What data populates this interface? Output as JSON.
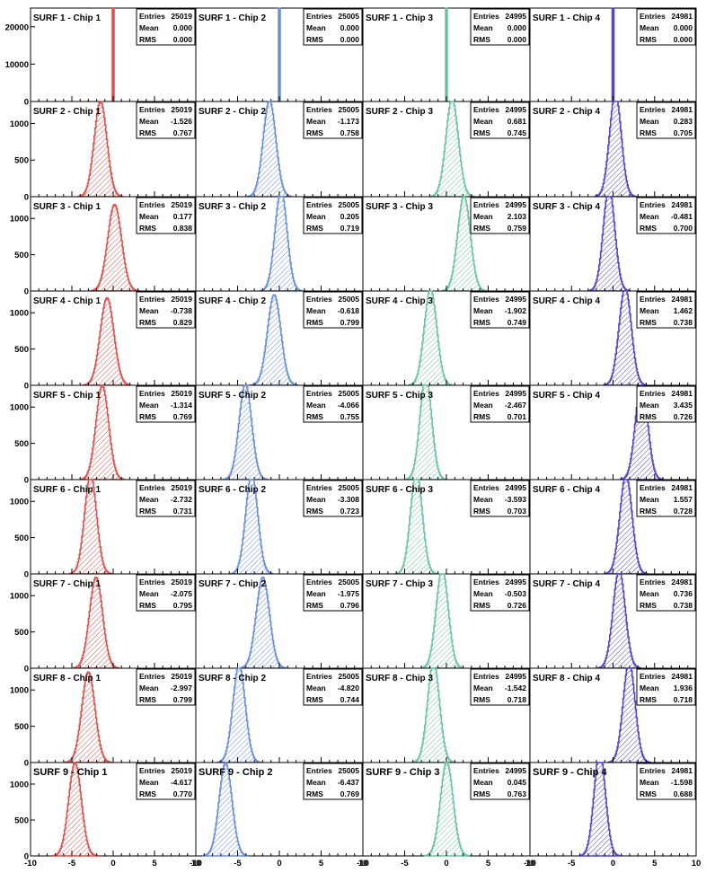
{
  "chart_data": {
    "type": "histogram-grid",
    "rows": 9,
    "cols": 4,
    "series_colors": [
      "#d9534f",
      "#6b8fd6",
      "#6dc39b",
      "#5145c8"
    ],
    "x_axis": {
      "xlim": [
        -10,
        10
      ],
      "ticks": [
        -10,
        -5,
        0,
        5,
        10
      ],
      "tick_labels": [
        "-10",
        "-5",
        "0",
        "5",
        "10"
      ]
    },
    "y_axis_row1": {
      "ticks": [
        0,
        10000,
        20000
      ],
      "tick_labels": [
        "0",
        "10000",
        "20000"
      ],
      "ylim": [
        0,
        25000
      ]
    },
    "y_axis_other": {
      "ticks": [
        0,
        500,
        1000
      ],
      "tick_labels": [
        "0",
        "500",
        "1000"
      ],
      "ylim": [
        0,
        1300
      ]
    },
    "stat_labels": {
      "entries": "Entries",
      "mean": "Mean",
      "rms": "RMS"
    },
    "panels": [
      {
        "title": "SURF 1 - Chip 1",
        "entries": "25019",
        "mean": "0.000",
        "rms": "0.000"
      },
      {
        "title": "SURF 1 - Chip 2",
        "entries": "25005",
        "mean": "0.000",
        "rms": "0.000"
      },
      {
        "title": "SURF 1 - Chip 3",
        "entries": "24995",
        "mean": "0.000",
        "rms": "0.000"
      },
      {
        "title": "SURF 1 - Chip 4",
        "entries": "24981",
        "mean": "0.000",
        "rms": "0.000"
      },
      {
        "title": "SURF 2 - Chip 1",
        "entries": "25019",
        "mean": "-1.526",
        "rms": "0.767"
      },
      {
        "title": "SURF 2 - Chip 2",
        "entries": "25005",
        "mean": "-1.173",
        "rms": "0.758"
      },
      {
        "title": "SURF 2 - Chip 3",
        "entries": "24995",
        "mean": "0.681",
        "rms": "0.745"
      },
      {
        "title": "SURF 2 - Chip 4",
        "entries": "24981",
        "mean": "0.283",
        "rms": "0.705"
      },
      {
        "title": "SURF 3 - Chip 1",
        "entries": "25019",
        "mean": "0.177",
        "rms": "0.838"
      },
      {
        "title": "SURF 3 - Chip 2",
        "entries": "25005",
        "mean": "0.205",
        "rms": "0.719"
      },
      {
        "title": "SURF 3 - Chip 3",
        "entries": "24995",
        "mean": "2.103",
        "rms": "0.759"
      },
      {
        "title": "SURF 3 - Chip 4",
        "entries": "24981",
        "mean": "-0.481",
        "rms": "0.700"
      },
      {
        "title": "SURF 4 - Chip 1",
        "entries": "25019",
        "mean": "-0.738",
        "rms": "0.829"
      },
      {
        "title": "SURF 4 - Chip 2",
        "entries": "25005",
        "mean": "-0.618",
        "rms": "0.799"
      },
      {
        "title": "SURF 4 - Chip 3",
        "entries": "24995",
        "mean": "-1.902",
        "rms": "0.749"
      },
      {
        "title": "SURF 4 - Chip 4",
        "entries": "24981",
        "mean": "1.462",
        "rms": "0.738"
      },
      {
        "title": "SURF 5 - Chip 1",
        "entries": "25019",
        "mean": "-1.314",
        "rms": "0.769"
      },
      {
        "title": "SURF 5 - Chip 2",
        "entries": "25005",
        "mean": "-4.066",
        "rms": "0.755"
      },
      {
        "title": "SURF 5 - Chip 3",
        "entries": "24995",
        "mean": "-2.467",
        "rms": "0.701"
      },
      {
        "title": "SURF 5 - Chip 4",
        "entries": "24981",
        "mean": "3.435",
        "rms": "0.726"
      },
      {
        "title": "SURF 6 - Chip 1",
        "entries": "25019",
        "mean": "-2.732",
        "rms": "0.731"
      },
      {
        "title": "SURF 6 - Chip 2",
        "entries": "25005",
        "mean": "-3.308",
        "rms": "0.723"
      },
      {
        "title": "SURF 6 - Chip 3",
        "entries": "24995",
        "mean": "-3.593",
        "rms": "0.703"
      },
      {
        "title": "SURF 6 - Chip 4",
        "entries": "24981",
        "mean": "1.557",
        "rms": "0.728"
      },
      {
        "title": "SURF 7 - Chip 1",
        "entries": "25019",
        "mean": "-2.075",
        "rms": "0.795"
      },
      {
        "title": "SURF 7 - Chip 2",
        "entries": "25005",
        "mean": "-1.975",
        "rms": "0.796"
      },
      {
        "title": "SURF 7 - Chip 3",
        "entries": "24995",
        "mean": "-0.503",
        "rms": "0.726"
      },
      {
        "title": "SURF 7 - Chip 4",
        "entries": "24981",
        "mean": "0.736",
        "rms": "0.738"
      },
      {
        "title": "SURF 8 - Chip 1",
        "entries": "25019",
        "mean": "-2.997",
        "rms": "0.799"
      },
      {
        "title": "SURF 8 - Chip 2",
        "entries": "25005",
        "mean": "-4.820",
        "rms": "0.744"
      },
      {
        "title": "SURF 8 - Chip 3",
        "entries": "24995",
        "mean": "-1.542",
        "rms": "0.718"
      },
      {
        "title": "SURF 8 - Chip 4",
        "entries": "24981",
        "mean": "1.936",
        "rms": "0.718"
      },
      {
        "title": "SURF 9 - Chip 1",
        "entries": "25019",
        "mean": "-4.617",
        "rms": "0.770"
      },
      {
        "title": "SURF 9 - Chip 2",
        "entries": "25005",
        "mean": "-6.437",
        "rms": "0.769"
      },
      {
        "title": "SURF 9 - Chip 3",
        "entries": "24995",
        "mean": "0.045",
        "rms": "0.763"
      },
      {
        "title": "SURF 9 - Chip 4",
        "entries": "24981",
        "mean": "-1.598",
        "rms": "0.688"
      }
    ]
  }
}
